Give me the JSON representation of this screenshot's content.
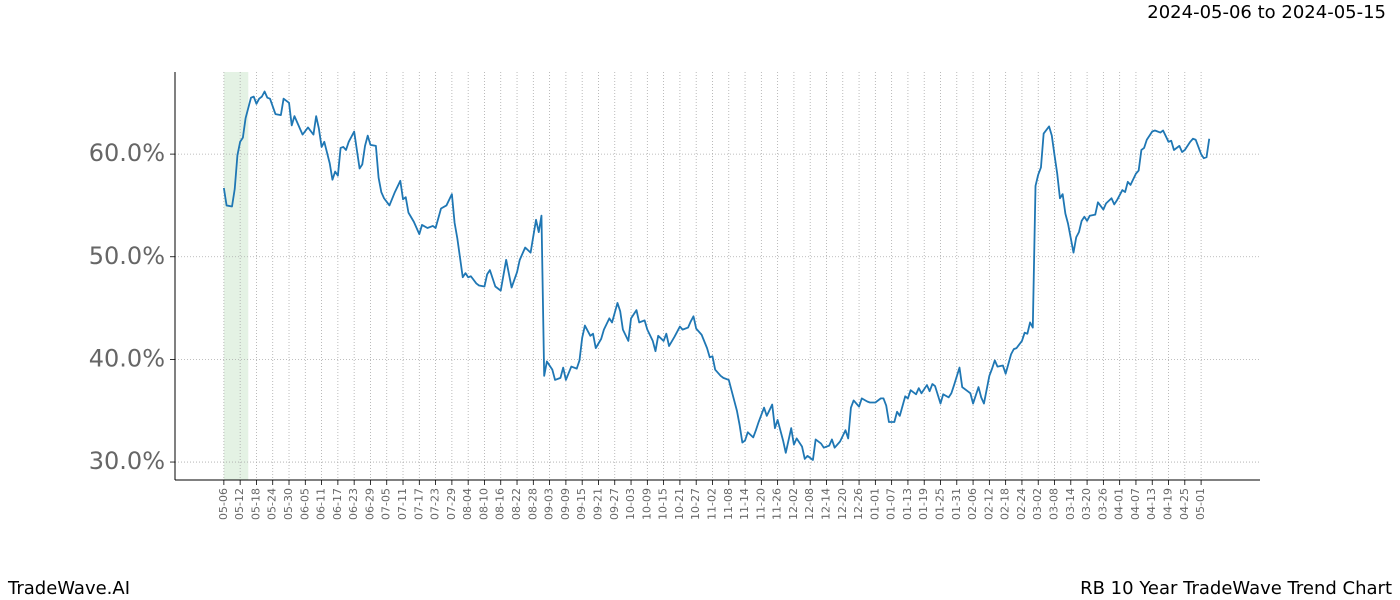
{
  "header": {
    "date_range": "2024-05-06 to 2024-05-15"
  },
  "footer": {
    "brand": "TradeWave.AI",
    "chart_title": "RB 10 Year TradeWave Trend Chart"
  },
  "chart_data": {
    "type": "line",
    "color": "#1f77b4",
    "grid": true,
    "highlight": {
      "x": [
        0,
        9
      ],
      "color": "#d8ecd8"
    },
    "xlim": [
      -18,
      381.7
    ],
    "ylim": [
      28.25,
      68
    ],
    "yticks": [
      {
        "value": 30,
        "label": "30.0%"
      },
      {
        "value": 40,
        "label": "40.0%"
      },
      {
        "value": 50,
        "label": "50.0%"
      },
      {
        "value": 60,
        "label": "60.0%"
      }
    ],
    "xticks": [
      {
        "value": 0,
        "label": "05-06"
      },
      {
        "value": 6,
        "label": "05-12"
      },
      {
        "value": 12,
        "label": "05-18"
      },
      {
        "value": 18,
        "label": "05-24"
      },
      {
        "value": 24,
        "label": "05-30"
      },
      {
        "value": 30,
        "label": "06-05"
      },
      {
        "value": 36,
        "label": "06-11"
      },
      {
        "value": 42,
        "label": "06-17"
      },
      {
        "value": 48,
        "label": "06-23"
      },
      {
        "value": 54,
        "label": "06-29"
      },
      {
        "value": 60,
        "label": "07-05"
      },
      {
        "value": 66,
        "label": "07-11"
      },
      {
        "value": 72,
        "label": "07-17"
      },
      {
        "value": 78,
        "label": "07-23"
      },
      {
        "value": 84,
        "label": "07-29"
      },
      {
        "value": 90,
        "label": "08-04"
      },
      {
        "value": 96,
        "label": "08-10"
      },
      {
        "value": 102,
        "label": "08-16"
      },
      {
        "value": 108,
        "label": "08-22"
      },
      {
        "value": 114,
        "label": "08-28"
      },
      {
        "value": 120,
        "label": "09-03"
      },
      {
        "value": 126,
        "label": "09-09"
      },
      {
        "value": 132,
        "label": "09-15"
      },
      {
        "value": 138,
        "label": "09-21"
      },
      {
        "value": 144,
        "label": "09-27"
      },
      {
        "value": 150,
        "label": "10-03"
      },
      {
        "value": 156,
        "label": "10-09"
      },
      {
        "value": 162,
        "label": "10-15"
      },
      {
        "value": 168,
        "label": "10-21"
      },
      {
        "value": 174,
        "label": "10-27"
      },
      {
        "value": 180,
        "label": "11-02"
      },
      {
        "value": 186,
        "label": "11-08"
      },
      {
        "value": 192,
        "label": "11-14"
      },
      {
        "value": 198,
        "label": "11-20"
      },
      {
        "value": 204,
        "label": "11-26"
      },
      {
        "value": 210,
        "label": "12-02"
      },
      {
        "value": 216,
        "label": "12-08"
      },
      {
        "value": 222,
        "label": "12-14"
      },
      {
        "value": 228,
        "label": "12-20"
      },
      {
        "value": 234,
        "label": "12-26"
      },
      {
        "value": 240,
        "label": "01-01"
      },
      {
        "value": 246,
        "label": "01-07"
      },
      {
        "value": 252,
        "label": "01-13"
      },
      {
        "value": 258,
        "label": "01-19"
      },
      {
        "value": 264,
        "label": "01-25"
      },
      {
        "value": 270,
        "label": "01-31"
      },
      {
        "value": 276,
        "label": "02-06"
      },
      {
        "value": 282,
        "label": "02-12"
      },
      {
        "value": 288,
        "label": "02-18"
      },
      {
        "value": 294,
        "label": "02-24"
      },
      {
        "value": 300,
        "label": "03-02"
      },
      {
        "value": 306,
        "label": "03-08"
      },
      {
        "value": 312,
        "label": "03-14"
      },
      {
        "value": 318,
        "label": "03-20"
      },
      {
        "value": 324,
        "label": "03-26"
      },
      {
        "value": 330,
        "label": "04-01"
      },
      {
        "value": 336,
        "label": "04-07"
      },
      {
        "value": 342,
        "label": "04-13"
      },
      {
        "value": 348,
        "label": "04-19"
      },
      {
        "value": 354,
        "label": "04-25"
      },
      {
        "value": 360,
        "label": "05-01"
      }
    ],
    "x": [
      0,
      1,
      3,
      4,
      5,
      6,
      7,
      8,
      10,
      11,
      12,
      13,
      14,
      15,
      16,
      17,
      19,
      21,
      22,
      24,
      25,
      26,
      28,
      29,
      31,
      33,
      34,
      35,
      36,
      37,
      39,
      40,
      41,
      42,
      43,
      44,
      45,
      46,
      48,
      49,
      50,
      51,
      52,
      53,
      54,
      56,
      57,
      58,
      59,
      61,
      63,
      65,
      66,
      67,
      68,
      70,
      72,
      73,
      75,
      77,
      78,
      80,
      82,
      84,
      85,
      86,
      88,
      89,
      90,
      91,
      93,
      94,
      96,
      97,
      98,
      100,
      102,
      104,
      106,
      108,
      109,
      111,
      113,
      115,
      116,
      117,
      118,
      119,
      121,
      122,
      124,
      125,
      126,
      128,
      130,
      131,
      132,
      133,
      135,
      136,
      137,
      139,
      140,
      142,
      143,
      145,
      146,
      147,
      149,
      150,
      152,
      153,
      155,
      156,
      158,
      159,
      160,
      162,
      163,
      164,
      166,
      168,
      169,
      171,
      172,
      173,
      174,
      176,
      178,
      179,
      180,
      181,
      183,
      184,
      186,
      187,
      189,
      190,
      191,
      192,
      193,
      195,
      196,
      197,
      199,
      200,
      202,
      203,
      204,
      206,
      207,
      209,
      210,
      211,
      213,
      214,
      215,
      217,
      218,
      220,
      221,
      223,
      224,
      225,
      227,
      229,
      230,
      231,
      232,
      234,
      235,
      237,
      238,
      240,
      242,
      243,
      244,
      245,
      247,
      248,
      249,
      251,
      252,
      253,
      255,
      256,
      257,
      259,
      260,
      261,
      262,
      264,
      265,
      267,
      268,
      269,
      271,
      272,
      274,
      275,
      276,
      278,
      279,
      280,
      282,
      283,
      284,
      285,
      287,
      288,
      290,
      291,
      292,
      294,
      295,
      296,
      297,
      298,
      299,
      300,
      301,
      302,
      304,
      305,
      306,
      307,
      308,
      309,
      310,
      311,
      312,
      313,
      314,
      315,
      316,
      317,
      318,
      319,
      321,
      322,
      324,
      325,
      327,
      328,
      329,
      331,
      332,
      333,
      334,
      336,
      337,
      338,
      339,
      340,
      342,
      343,
      345,
      346,
      348,
      349,
      350,
      352,
      353,
      354,
      356,
      357,
      358,
      360,
      361,
      362,
      363
    ],
    "values": [
      56.7,
      55.0,
      54.9,
      56.6,
      59.9,
      61.2,
      61.6,
      63.5,
      65.5,
      65.6,
      64.9,
      65.4,
      65.6,
      66.1,
      65.5,
      65.4,
      63.9,
      63.8,
      65.4,
      65.0,
      62.8,
      63.7,
      62.5,
      61.9,
      62.6,
      61.9,
      63.7,
      62.5,
      60.7,
      61.2,
      59.1,
      57.5,
      58.3,
      57.9,
      60.6,
      60.7,
      60.4,
      61.2,
      62.2,
      60.4,
      58.6,
      59.0,
      60.8,
      61.8,
      60.9,
      60.8,
      57.7,
      56.3,
      55.7,
      55.0,
      56.3,
      57.4,
      55.6,
      55.8,
      54.3,
      53.4,
      52.2,
      53.1,
      52.8,
      53.0,
      52.8,
      54.7,
      55.0,
      56.1,
      53.3,
      51.8,
      48.0,
      48.4,
      48.0,
      48.1,
      47.4,
      47.2,
      47.1,
      48.3,
      48.7,
      47.1,
      46.7,
      49.7,
      47.0,
      48.5,
      49.7,
      50.9,
      50.4,
      53.6,
      52.4,
      54.0,
      38.4,
      39.8,
      39.0,
      38.0,
      38.2,
      39.2,
      38.0,
      39.3,
      39.1,
      39.9,
      42.1,
      43.3,
      42.3,
      42.5,
      41.1,
      42.0,
      42.9,
      44.0,
      43.6,
      45.5,
      44.7,
      42.9,
      41.8,
      44.0,
      44.8,
      43.6,
      43.8,
      42.9,
      41.8,
      40.8,
      42.3,
      41.8,
      42.5,
      41.3,
      42.2,
      43.2,
      42.9,
      43.1,
      43.7,
      44.2,
      43.0,
      42.4,
      41.1,
      40.2,
      40.3,
      39.0,
      38.4,
      38.2,
      38.0,
      37.0,
      35.0,
      33.6,
      31.9,
      32.1,
      32.9,
      32.4,
      33.1,
      33.9,
      35.3,
      34.5,
      35.6,
      33.3,
      34.1,
      32.1,
      30.9,
      33.3,
      31.7,
      32.3,
      31.5,
      30.3,
      30.6,
      30.2,
      32.2,
      31.8,
      31.4,
      31.6,
      32.2,
      31.4,
      32.0,
      33.1,
      32.3,
      35.3,
      36.0,
      35.4,
      36.2,
      35.9,
      35.8,
      35.8,
      36.2,
      36.2,
      35.5,
      33.9,
      33.9,
      34.9,
      34.5,
      36.4,
      36.2,
      37.0,
      36.6,
      37.2,
      36.7,
      37.5,
      36.9,
      37.6,
      37.4,
      35.7,
      36.6,
      36.3,
      36.7,
      37.5,
      39.2,
      37.3,
      36.9,
      36.7,
      35.7,
      37.3,
      36.3,
      35.7,
      38.4,
      39.1,
      39.9,
      39.3,
      39.4,
      38.6,
      40.5,
      41.0,
      41.1,
      41.8,
      42.6,
      42.5,
      43.6,
      43.1,
      56.9,
      58.0,
      58.7,
      62.0,
      62.7,
      61.8,
      59.9,
      58.1,
      55.7,
      56.1,
      54.2,
      53.2,
      51.8,
      50.4,
      51.9,
      52.4,
      53.5,
      53.9,
      53.5,
      54.0,
      54.1,
      55.3,
      54.6,
      55.2,
      55.7,
      55.1,
      55.5,
      56.5,
      56.3,
      57.3,
      57.0,
      58.1,
      58.4,
      60.4,
      60.6,
      61.4,
      62.2,
      62.3,
      62.1,
      62.3,
      61.2,
      61.3,
      60.4,
      60.8,
      60.2,
      60.4,
      61.2,
      61.5,
      61.4,
      60.0,
      59.6,
      59.7,
      61.5
    ]
  }
}
